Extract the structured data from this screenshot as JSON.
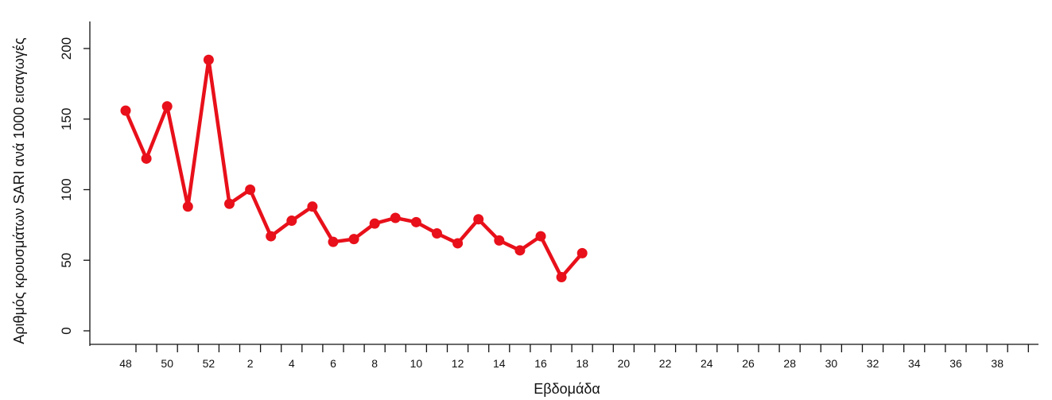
{
  "chart_data": {
    "type": "line",
    "xlabel": "Εβδομάδα",
    "ylabel": "Αριθμός κρουσμάτων SARI ανά 1000 εισαγωγές",
    "ylim": [
      0,
      220
    ],
    "yticks": [
      0,
      50,
      100,
      150,
      200
    ],
    "weeks": [
      48,
      49,
      50,
      51,
      52,
      1,
      2,
      3,
      4,
      5,
      6,
      7,
      8,
      9,
      10,
      11,
      12,
      13,
      14,
      15,
      16,
      17,
      18,
      19,
      20,
      21,
      22,
      23,
      24,
      25,
      26,
      27,
      28,
      29,
      30,
      31,
      32,
      33,
      34,
      35,
      36,
      37,
      38,
      39
    ],
    "x_tick_labels": [
      "48",
      "",
      "50",
      "",
      "52",
      "",
      "2",
      "",
      "4",
      "",
      "6",
      "",
      "8",
      "",
      "10",
      "",
      "12",
      "",
      "14",
      "",
      "16",
      "",
      "18",
      "",
      "20",
      "",
      "22",
      "",
      "24",
      "",
      "26",
      "",
      "28",
      "",
      "30",
      "",
      "32",
      "",
      "34",
      "",
      "36",
      "",
      "38",
      ""
    ],
    "series": [
      {
        "color": "#e8101a",
        "x": [
          48,
          49,
          50,
          51,
          52,
          1,
          2,
          3,
          4,
          5,
          6,
          7,
          8,
          9,
          10,
          11,
          12,
          13,
          14,
          15,
          16,
          17,
          18
        ],
        "values": [
          156,
          122,
          159,
          88,
          192,
          90,
          100,
          67,
          78,
          88,
          63,
          65,
          76,
          80,
          77,
          69,
          62,
          79,
          64,
          57,
          67,
          38,
          55
        ]
      }
    ],
    "grid": false,
    "legend": "none"
  }
}
